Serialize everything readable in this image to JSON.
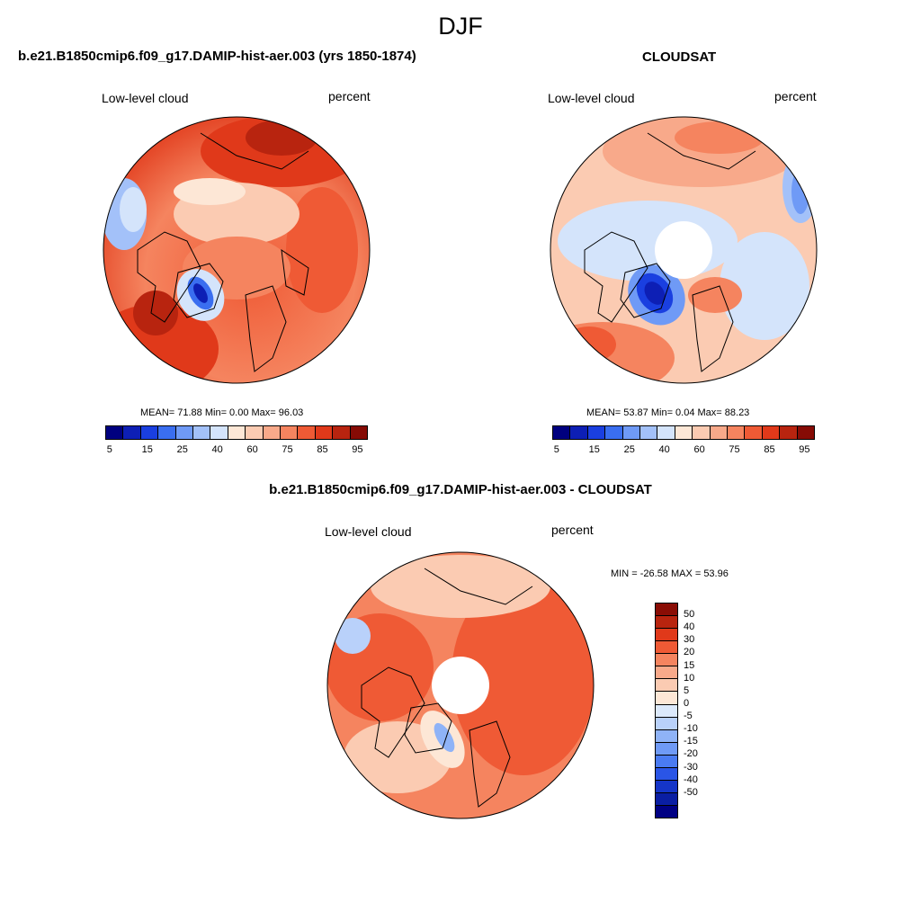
{
  "season": "DJF",
  "panels": [
    {
      "title": "b.e21.B1850cmip6.f09_g17.DAMIP-hist-aer.003 (yrs 1850-1874)",
      "variable": "Low-level cloud",
      "units": "percent",
      "stats": "MEAN=  71.88  Min=   0.00  Max=  96.03"
    },
    {
      "title": "CLOUDSAT",
      "variable": "Low-level cloud",
      "units": "percent",
      "stats": "MEAN=  53.87  Min=   0.04  Max=  88.23"
    },
    {
      "title": "b.e21.B1850cmip6.f09_g17.DAMIP-hist-aer.003 - CLOUDSAT",
      "variable": "Low-level cloud",
      "units": "percent",
      "stats": "MIN = -26.58 MAX =  53.96"
    }
  ],
  "colorbar_abs": {
    "colors": [
      "#00007f",
      "#0d1fb5",
      "#1a3fe0",
      "#3a6ef0",
      "#6f9af6",
      "#a3c1f9",
      "#d4e4fb",
      "#fde7d6",
      "#fbcbb2",
      "#f8a98a",
      "#f5845f",
      "#ef5a35",
      "#e0391a",
      "#b8240f",
      "#860b05"
    ],
    "labels": [
      "5",
      "15",
      "25",
      "40",
      "60",
      "75",
      "85",
      "95"
    ]
  },
  "colorbar_diff": {
    "colors": [
      "#8a0d05",
      "#b8240f",
      "#e0391a",
      "#ef5a35",
      "#f5845f",
      "#f8a98a",
      "#fbcbb2",
      "#fde7d6",
      "#dce9fb",
      "#b9d1fa",
      "#8fb3f7",
      "#6f9af6",
      "#4a7bf2",
      "#2a55e6",
      "#1535c8",
      "#0a1ea3",
      "#000083"
    ],
    "labels": [
      "50",
      "40",
      "30",
      "20",
      "15",
      "10",
      "5",
      "0",
      "-5",
      "-10",
      "-15",
      "-20",
      "-30",
      "-40",
      "-50"
    ]
  }
}
